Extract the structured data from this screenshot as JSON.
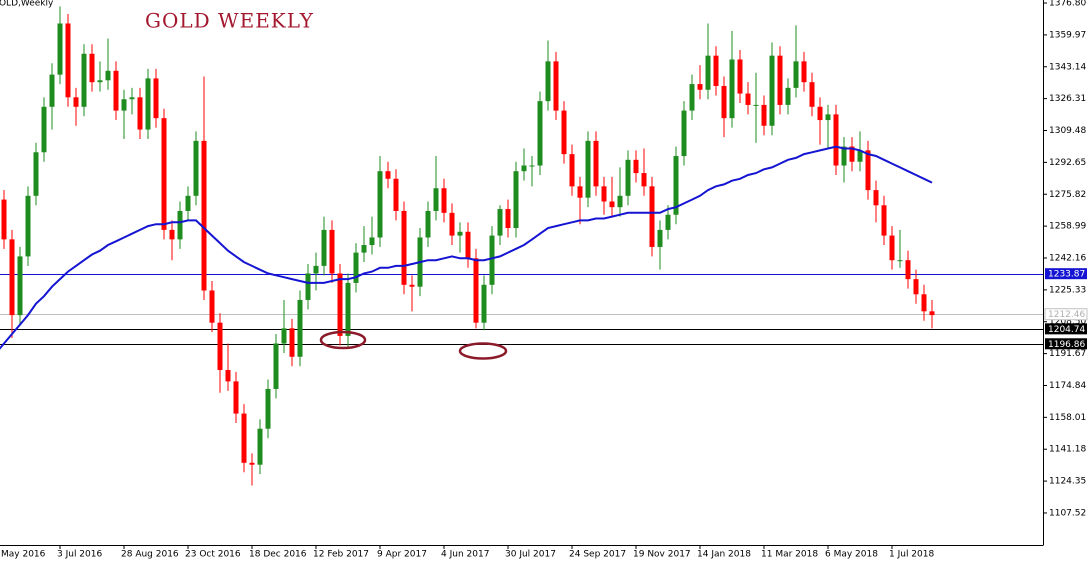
{
  "chart_data": {
    "type": "candlestick",
    "title": "GOLD WEEKLY",
    "subtitle": "GOLD,Weekly",
    "categories": [
      "May 2016",
      null,
      null,
      null,
      null,
      null,
      null,
      null,
      "3 Jul 2016",
      null,
      null,
      null,
      null,
      null,
      null,
      null,
      "28 Aug 2016",
      null,
      null,
      null,
      null,
      null,
      null,
      null,
      "23 Oct 2016",
      null,
      null,
      null,
      null,
      null,
      null,
      null,
      "18 Dec 2016",
      null,
      null,
      null,
      null,
      null,
      null,
      null,
      "12 Feb 2017",
      null,
      null,
      null,
      null,
      null,
      null,
      null,
      "9 Apr 2017",
      null,
      null,
      null,
      null,
      null,
      null,
      null,
      "4 Jun 2017",
      null,
      null,
      null,
      null,
      null,
      null,
      null,
      "30 Jul 2017",
      null,
      null,
      null,
      null,
      null,
      null,
      null,
      "24 Sep 2017",
      null,
      null,
      null,
      null,
      null,
      null,
      null,
      "19 Nov 2017",
      null,
      null,
      null,
      null,
      null,
      null,
      null,
      "14 Jan 2018",
      null,
      null,
      null,
      null,
      null,
      null,
      null,
      "11 Mar 2018",
      null,
      null,
      null,
      null,
      null,
      null,
      null,
      "6 May 2018",
      null,
      null,
      null,
      null,
      null,
      null,
      null,
      "1 Jul 2018",
      null,
      null,
      null,
      null,
      null
    ],
    "open": [
      1290,
      1273,
      1252,
      1212,
      1243,
      1275,
      1298,
      1322,
      1339,
      1366,
      1327,
      1322,
      1350,
      1335,
      1336,
      1341,
      1320,
      1326,
      1327,
      1310,
      1337,
      1316,
      1257,
      1252,
      1267,
      1275,
      1304,
      1225,
      1208,
      1183,
      1177,
      1160,
      1134,
      1133,
      1152,
      1173,
      1197,
      1205,
      1190,
      1220,
      1234,
      1238,
      1257,
      1234,
      1201,
      1229,
      1245,
      1249,
      1253,
      1288,
      1284,
      1267,
      1228,
      1227,
      1253,
      1267,
      1279,
      1266,
      1254,
      1256,
      1242,
      1208,
      1228,
      1254,
      1268,
      1258,
      1288,
      1291,
      1291,
      1325,
      1346,
      1320,
      1297,
      1280,
      1274,
      1304,
      1280,
      1272,
      1269,
      1275,
      1294,
      1287,
      1280,
      1248,
      1257,
      1265,
      1296,
      1320,
      1334,
      1331,
      1349,
      1333,
      1316,
      1347,
      1329,
      1323,
      1323,
      1312,
      1349,
      1323,
      1332,
      1346,
      1335,
      1322,
      1315,
      1318,
      1291,
      1301,
      1293,
      1299,
      1278,
      1270,
      1254,
      1241,
      1241,
      1231,
      1223,
      1214
    ],
    "high": [
      1295,
      1278,
      1257,
      1248,
      1280,
      1303,
      1327,
      1345,
      1375,
      1371,
      1332,
      1355,
      1355,
      1346,
      1358,
      1346,
      1331,
      1332,
      1332,
      1342,
      1342,
      1321,
      1262,
      1272,
      1280,
      1309,
      1338,
      1230,
      1213,
      1197,
      1182,
      1165,
      1139,
      1157,
      1178,
      1202,
      1220,
      1210,
      1225,
      1239,
      1245,
      1264,
      1262,
      1239,
      1234,
      1250,
      1259,
      1264,
      1296,
      1293,
      1289,
      1272,
      1233,
      1258,
      1272,
      1296,
      1284,
      1271,
      1261,
      1261,
      1247,
      1233,
      1259,
      1270,
      1273,
      1293,
      1300,
      1296,
      1330,
      1357,
      1351,
      1325,
      1302,
      1285,
      1309,
      1309,
      1285,
      1285,
      1290,
      1299,
      1299,
      1300,
      1285,
      1262,
      1270,
      1301,
      1325,
      1339,
      1344,
      1366,
      1354,
      1338,
      1362,
      1352,
      1335,
      1340,
      1328,
      1356,
      1354,
      1337,
      1365,
      1351,
      1340,
      1327,
      1323,
      1323,
      1306,
      1306,
      1309,
      1304,
      1283,
      1275,
      1259,
      1257,
      1246,
      1236,
      1228,
      1220
    ],
    "low": [
      1268,
      1247,
      1200,
      1207,
      1238,
      1270,
      1293,
      1310,
      1334,
      1322,
      1312,
      1317,
      1330,
      1330,
      1331,
      1315,
      1305,
      1318,
      1305,
      1305,
      1311,
      1252,
      1241,
      1247,
      1262,
      1270,
      1220,
      1203,
      1171,
      1172,
      1155,
      1129,
      1122,
      1128,
      1147,
      1168,
      1192,
      1185,
      1185,
      1215,
      1225,
      1233,
      1229,
      1196,
      1195,
      1224,
      1240,
      1244,
      1248,
      1279,
      1262,
      1223,
      1214,
      1222,
      1248,
      1262,
      1261,
      1249,
      1245,
      1237,
      1205,
      1204,
      1223,
      1249,
      1253,
      1253,
      1283,
      1280,
      1286,
      1320,
      1315,
      1292,
      1275,
      1260,
      1269,
      1275,
      1265,
      1264,
      1264,
      1270,
      1282,
      1275,
      1243,
      1236,
      1252,
      1260,
      1291,
      1315,
      1326,
      1326,
      1328,
      1306,
      1311,
      1324,
      1318,
      1303,
      1307,
      1307,
      1318,
      1318,
      1327,
      1330,
      1317,
      1302,
      1300,
      1286,
      1282,
      1288,
      1288,
      1273,
      1261,
      1249,
      1236,
      1237,
      1226,
      1218,
      1209,
      1205
    ],
    "close": [
      1273,
      1252,
      1212,
      1243,
      1275,
      1298,
      1322,
      1339,
      1366,
      1327,
      1322,
      1350,
      1335,
      1336,
      1341,
      1320,
      1326,
      1327,
      1310,
      1337,
      1316,
      1257,
      1252,
      1267,
      1275,
      1304,
      1225,
      1208,
      1183,
      1177,
      1160,
      1134,
      1133,
      1152,
      1173,
      1197,
      1205,
      1190,
      1220,
      1234,
      1238,
      1257,
      1234,
      1201,
      1229,
      1245,
      1249,
      1253,
      1288,
      1284,
      1267,
      1228,
      1227,
      1253,
      1267,
      1279,
      1266,
      1254,
      1256,
      1242,
      1208,
      1228,
      1254,
      1268,
      1258,
      1288,
      1291,
      1291,
      1325,
      1346,
      1320,
      1297,
      1280,
      1274,
      1304,
      1280,
      1272,
      1269,
      1275,
      1294,
      1287,
      1280,
      1248,
      1257,
      1265,
      1296,
      1320,
      1334,
      1331,
      1349,
      1333,
      1316,
      1347,
      1329,
      1323,
      1323,
      1312,
      1349,
      1323,
      1332,
      1346,
      1335,
      1322,
      1315,
      1318,
      1291,
      1301,
      1293,
      1299,
      1278,
      1270,
      1254,
      1241,
      1241,
      1231,
      1223,
      1214,
      1212
    ],
    "up_color": "#1f8c1f",
    "down_color": "#ff0000",
    "ma": {
      "color": "#1414d2",
      "values": [
        1192,
        1197,
        1202,
        1207,
        1212,
        1218,
        1222,
        1227,
        1231,
        1235,
        1238,
        1241,
        1244,
        1246,
        1249,
        1251,
        1253,
        1255,
        1257,
        1259,
        1260,
        1260,
        1261,
        1261,
        1262,
        1262,
        1258,
        1254,
        1250,
        1246,
        1243,
        1240,
        1238,
        1236,
        1234,
        1233,
        1232,
        1231,
        1230,
        1229,
        1229,
        1229,
        1230,
        1231,
        1231,
        1232,
        1234,
        1235,
        1237,
        1237,
        1238,
        1238,
        1239,
        1240,
        1241,
        1241,
        1242,
        1243,
        1242,
        1242,
        1241,
        1241,
        1242,
        1243,
        1245,
        1247,
        1249,
        1252,
        1255,
        1258,
        1259,
        1260,
        1261,
        1262,
        1262,
        1263,
        1263,
        1264,
        1265,
        1266,
        1266,
        1266,
        1266,
        1266,
        1268,
        1269,
        1271,
        1273,
        1275,
        1278,
        1280,
        1281,
        1283,
        1284,
        1286,
        1287,
        1289,
        1290,
        1292,
        1294,
        1295,
        1297,
        1298,
        1299,
        1300,
        1301,
        1300,
        1300,
        1299,
        1297,
        1296,
        1294,
        1292,
        1290,
        1288,
        1286,
        1284,
        1282
      ]
    },
    "levels": [
      {
        "value": 1233.87,
        "color": "#1414d2"
      },
      {
        "value": 1212.46,
        "color": "#c0c0c0"
      },
      {
        "value": 1204.74,
        "color": "#000000"
      },
      {
        "value": 1196.86,
        "color": "#000000"
      }
    ],
    "ylim": [
      1090.6,
      1378.4
    ],
    "yticks": [
      {
        "value": 1376.8,
        "label": "1376.80"
      },
      1359.97,
      1343.14,
      1326.31,
      1309.48,
      1292.65,
      1275.82,
      1258.99,
      1242.16,
      1225.33,
      {
        "value": 1208.5,
        "label": "1208.50"
      },
      1191.67,
      1174.84,
      1158.01,
      1141.18,
      1124.35,
      1107.52
    ]
  }
}
